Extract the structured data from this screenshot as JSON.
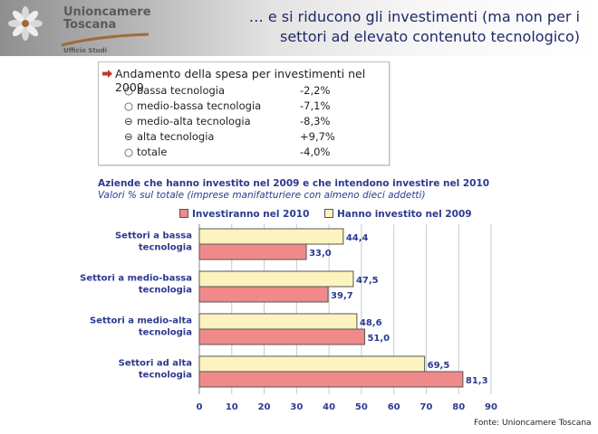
{
  "header": {
    "logo_name": "Unioncamere Toscana",
    "logo_sub": "Ufficio Studi",
    "title": "… e si riducono gli investimenti (ma non per i settori ad elevato contenuto tecnologico)"
  },
  "infobox": {
    "title": "Andamento della spesa per investimenti nel 2009",
    "rows": [
      {
        "mark": "○",
        "label": "bassa tecnologia",
        "value": "-2,2%"
      },
      {
        "mark": "○",
        "label": "medio-bassa tecnologia",
        "value": "-7,1%"
      },
      {
        "mark": "⊖",
        "label": "medio-alta tecnologia",
        "value": "-8,3%"
      },
      {
        "mark": "⊖",
        "label": "alta tecnologia",
        "value": "+9,7%"
      },
      {
        "mark": "○",
        "label": "totale",
        "value": "-4,0%"
      }
    ]
  },
  "colors": {
    "series_2010": "#f08a8a",
    "series_2009": "#fdf3bf",
    "title_blue": "#2b3a8f",
    "header_title": "#1f2a6b"
  },
  "chart_data": {
    "type": "bar",
    "orientation": "horizontal",
    "title": "Aziende che hanno investito nel 2009 e che intendono investire nel 2010",
    "subtitle": "Valori % sul totale (imprese manifatturiere con almeno dieci addetti)",
    "categories": [
      "Settori a bassa tecnologia",
      "Settori a medio-bassa tecnologia",
      "Settori a medio-alta tecnologia",
      "Settori ad alta tecnologia"
    ],
    "series": [
      {
        "name": "Investiranno nel 2010",
        "values": [
          33.0,
          39.7,
          51.0,
          81.3
        ],
        "labels": [
          "33,0",
          "39,7",
          "51,0",
          "81,3"
        ]
      },
      {
        "name": "Hanno investito nel 2009",
        "values": [
          44.4,
          47.5,
          48.6,
          69.5
        ],
        "labels": [
          "44,4",
          "47,5",
          "48,6",
          "69,5"
        ]
      }
    ],
    "xlim": [
      0,
      90
    ],
    "xticks": [
      "0",
      "10",
      "20",
      "30",
      "40",
      "50",
      "60",
      "70",
      "80",
      "90"
    ],
    "grid": true,
    "legend": "top"
  },
  "footer": {
    "source": "Fonte: Unioncamere Toscana"
  }
}
